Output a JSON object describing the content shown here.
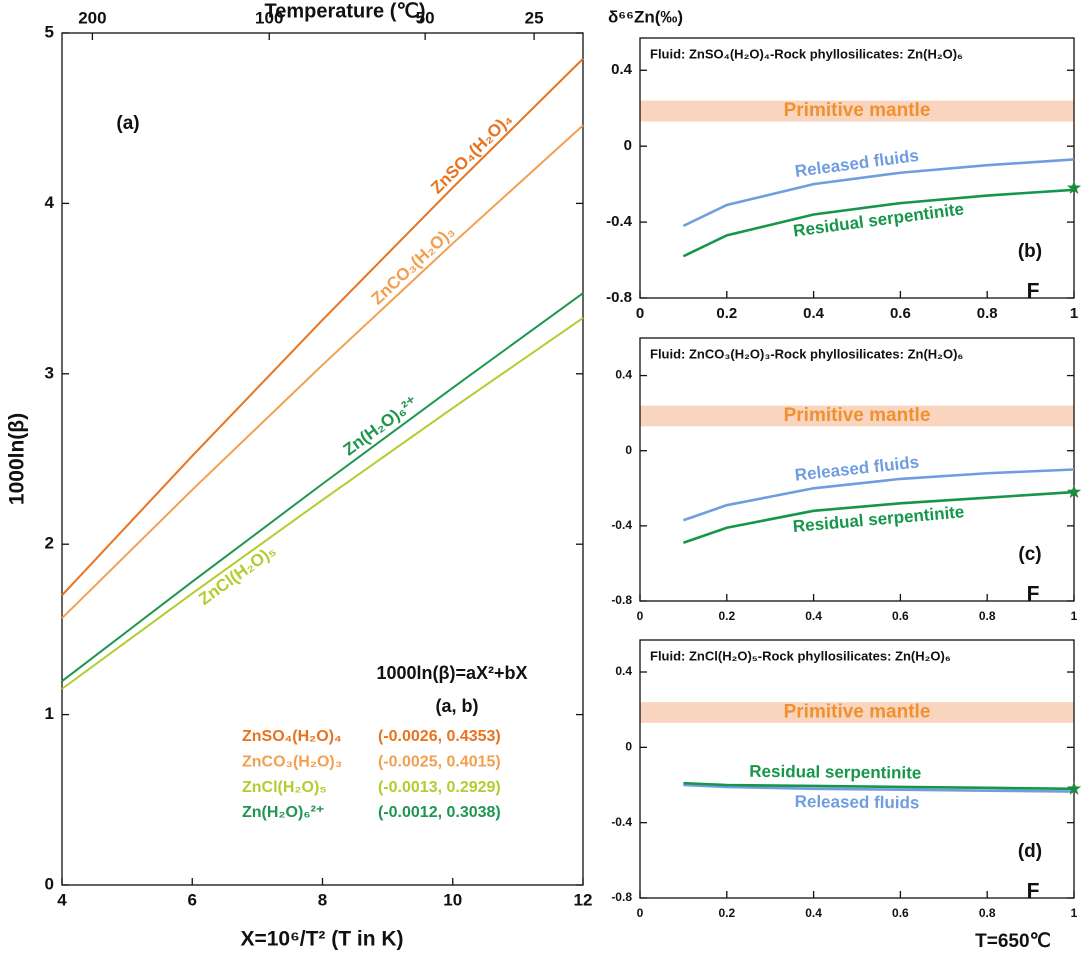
{
  "chart_data": [
    {
      "type": "line",
      "x_label": "X=10⁶/T² (T in K)",
      "y_label": "1000ln(β)",
      "x2_label": "Temperature (℃)",
      "panel_label": "(a)",
      "equation": "1000ln(β)=aX²+bX",
      "coefficient_header": "(a, b)",
      "xlim": [
        4,
        12
      ],
      "xticks": [
        4,
        6,
        8,
        10,
        12
      ],
      "ylim": [
        0,
        5
      ],
      "yticks": [
        0,
        1,
        2,
        3,
        4,
        5
      ],
      "x2ticks": [
        {
          "value": 4.467,
          "label": "200"
        },
        {
          "value": 7.182,
          "label": "100"
        },
        {
          "value": 9.576,
          "label": "50"
        },
        {
          "value": 11.249,
          "label": "25"
        }
      ],
      "x": [
        4,
        6,
        8,
        10,
        12
      ],
      "series": [
        {
          "name": "ZnSO₄(H₂O)₄",
          "color": "#e8731f",
          "coefficients": "(-0.0026, 0.4353)",
          "values": [
            1.7,
            2.518,
            3.316,
            4.093,
            4.849
          ]
        },
        {
          "name": "ZnCO₃(H₂O)₃",
          "color": "#f2a050",
          "coefficients": "(-0.0025, 0.4015)",
          "values": [
            1.566,
            2.319,
            3.052,
            3.765,
            4.458
          ]
        },
        {
          "name": "ZnCl(H₂O)₅",
          "color": "#b3cc2e",
          "coefficients": "(-0.0013, 0.2929)",
          "values": [
            1.151,
            1.711,
            2.26,
            2.799,
            3.328
          ]
        },
        {
          "name": "Zn(H₂O)₆²⁺",
          "color": "#1e9650",
          "coefficients": "(-0.0012, 0.3038)",
          "values": [
            1.196,
            1.78,
            2.354,
            2.918,
            3.473
          ]
        }
      ]
    },
    {
      "type": "line",
      "subtitle": "Fluid: ZnSO₄(H₂O)₄-Rock phyllosilicates: Zn(H₂O)₆",
      "panel_label": "(b)",
      "x_label": "F",
      "y_label": "δ⁶⁶Zn(‰)",
      "xlim": [
        0,
        1
      ],
      "xticks": [
        0,
        0.2,
        0.4,
        0.6,
        0.8,
        1
      ],
      "ylim": [
        -0.8,
        0.57
      ],
      "yticks": [
        -0.8,
        -0.4,
        0,
        0.4
      ],
      "band": {
        "label": "Primitive mantle",
        "y": [
          0.13,
          0.24
        ],
        "color": "#f9d5bf",
        "text_color": "#f0902e"
      },
      "x": [
        0.1,
        0.2,
        0.4,
        0.6,
        0.8,
        1
      ],
      "series": [
        {
          "name": "Released fluids",
          "color": "#6f9de0",
          "values": [
            -0.42,
            -0.31,
            -0.2,
            -0.14,
            -0.1,
            -0.07
          ]
        },
        {
          "name": "Residual serpentinite",
          "color": "#16964a",
          "values": [
            -0.58,
            -0.47,
            -0.36,
            -0.3,
            -0.26,
            -0.23
          ]
        }
      ],
      "marker": {
        "x": 1,
        "y": -0.22,
        "color": "#1e8a3c"
      }
    },
    {
      "type": "line",
      "subtitle": "Fluid: ZnCO₃(H₂O)₃-Rock phyllosilicates: Zn(H₂O)₆",
      "panel_label": "(c)",
      "x_label": "F",
      "xlim": [
        0,
        1
      ],
      "xticks": [
        0,
        0.2,
        0.4,
        0.6,
        0.8,
        1
      ],
      "ylim": [
        -0.8,
        0.6
      ],
      "yticks": [
        -0.8,
        -0.4,
        0,
        0.4
      ],
      "band": {
        "label": "Primitive mantle",
        "y": [
          0.13,
          0.24
        ],
        "color": "#f9d5bf",
        "text_color": "#f0902e"
      },
      "x": [
        0.1,
        0.2,
        0.4,
        0.6,
        0.8,
        1
      ],
      "series": [
        {
          "name": "Released fluids",
          "color": "#6f9de0",
          "values": [
            -0.37,
            -0.29,
            -0.2,
            -0.15,
            -0.12,
            -0.1
          ]
        },
        {
          "name": "Residual serpentinite",
          "color": "#16964a",
          "values": [
            -0.49,
            -0.41,
            -0.32,
            -0.28,
            -0.25,
            -0.22
          ]
        }
      ],
      "marker": {
        "x": 1,
        "y": -0.22,
        "color": "#1e8a3c"
      }
    },
    {
      "type": "line",
      "subtitle": "Fluid: ZnCl(H₂O)₅-Rock phyllosilicates: Zn(H₂O)₆",
      "panel_label": "(d)",
      "x_label": "F",
      "annotation": "T=650℃",
      "xlim": [
        0,
        1
      ],
      "xticks": [
        0,
        0.2,
        0.4,
        0.6,
        0.8,
        1
      ],
      "ylim": [
        -0.8,
        0.57
      ],
      "yticks": [
        -0.8,
        -0.4,
        0,
        0.4
      ],
      "band": {
        "label": "Primitive mantle",
        "y": [
          0.13,
          0.24
        ],
        "color": "#f9d5bf",
        "text_color": "#f0902e"
      },
      "x": [
        0.1,
        0.2,
        0.4,
        0.6,
        0.8,
        1
      ],
      "series": [
        {
          "name": "Released fluids",
          "color": "#6f9de0",
          "values": [
            -0.2,
            -0.21,
            -0.22,
            -0.225,
            -0.23,
            -0.235
          ]
        },
        {
          "name": "Residual serpentinite",
          "color": "#16964a",
          "values": [
            -0.19,
            -0.2,
            -0.205,
            -0.21,
            -0.215,
            -0.22
          ]
        }
      ],
      "marker": {
        "x": 1,
        "y": -0.22,
        "color": "#1e8a3c"
      }
    }
  ]
}
